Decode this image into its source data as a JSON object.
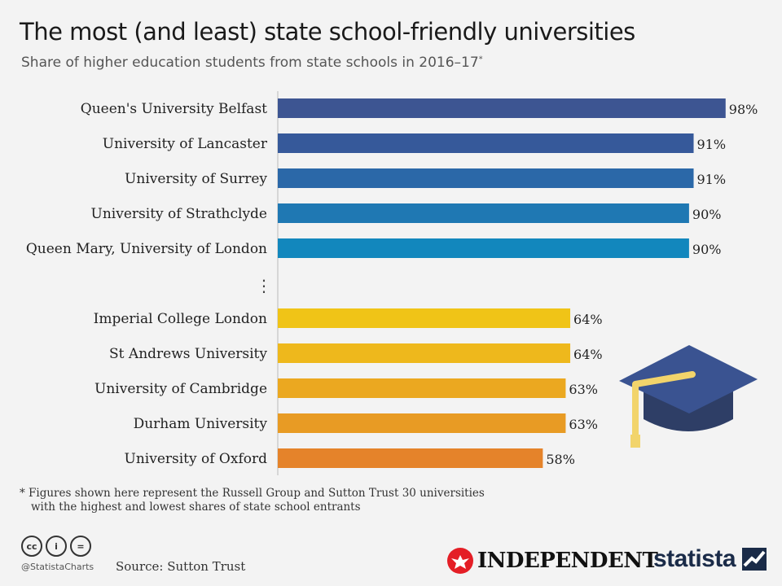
{
  "header": {
    "title": "The most (and least) state school-friendly universities",
    "subtitle": "Share of higher education students from state schools in 2016–17",
    "subtitle_marker": "*"
  },
  "chart_data": {
    "type": "bar",
    "orientation": "horizontal",
    "categories": [
      "Queen's University Belfast",
      "University of Lancaster",
      "University of Surrey",
      "University of Strathclyde",
      "Queen Mary, University of London",
      "Imperial College London",
      "St Andrews University",
      "University of Cambridge",
      "Durham University",
      "University of Oxford"
    ],
    "values": [
      98,
      91,
      91,
      90,
      90,
      64,
      64,
      63,
      63,
      58
    ],
    "value_labels": [
      "98%",
      "91%",
      "91%",
      "90%",
      "90%",
      "64%",
      "64%",
      "63%",
      "63%",
      "58%"
    ],
    "colors": [
      "#3d5592",
      "#36599a",
      "#2b68a8",
      "#1f78b3",
      "#1287bd",
      "#f0c417",
      "#eeb81c",
      "#eba820",
      "#e89b24",
      "#e5832a"
    ],
    "gap_marker": "⋮",
    "xlim": [
      0,
      100
    ],
    "grid": false
  },
  "footnote": {
    "line1": "* Figures shown here represent the Russell Group and Sutton Trust 30 universities",
    "line2": "with the highest and lowest shares of state school entrants"
  },
  "footer": {
    "cc_icons": [
      "cc",
      "i",
      "="
    ],
    "handle": "@StatistaCharts",
    "source": "Source: Sutton Trust",
    "partner_logo": "INDEPENDENT",
    "brand": "statista"
  },
  "icons": {
    "decoration": "graduation-cap-icon",
    "partner": "eagle-icon",
    "brand": "statista-icon"
  }
}
